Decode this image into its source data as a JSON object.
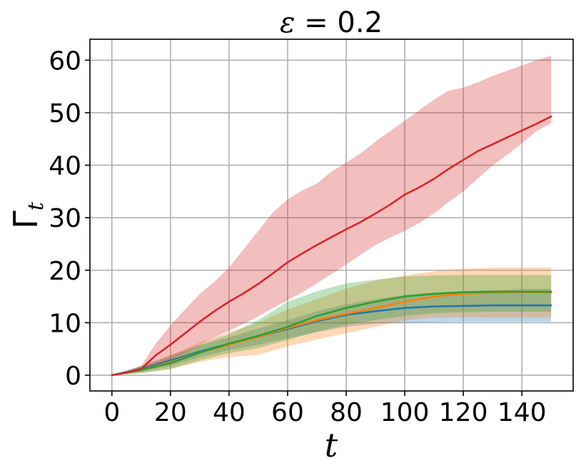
{
  "chart_data": {
    "type": "line",
    "title": {
      "symbol": "ε",
      "text": " = 0.2"
    },
    "xlabel": "t",
    "ylabel": {
      "main": "Γ",
      "sub": "t"
    },
    "xlim": [
      -7.5,
      157.5
    ],
    "ylim": [
      -3,
      64
    ],
    "xticks": [
      0,
      20,
      40,
      60,
      80,
      100,
      120,
      140
    ],
    "yticks": [
      0,
      10,
      20,
      30,
      40,
      50,
      60
    ],
    "grid": true,
    "legend": "none",
    "series": [
      {
        "color": "#1f77b4",
        "x": [
          0,
          10,
          20,
          30,
          40,
          50,
          60,
          70,
          80,
          90,
          100,
          110,
          120,
          130,
          140,
          150
        ],
        "values": [
          0,
          1.2,
          2.8,
          4.5,
          6.0,
          7.3,
          8.8,
          10.3,
          11.5,
          12.2,
          12.8,
          13.1,
          13.2,
          13.3,
          13.3,
          13.3
        ],
        "lower": [
          0,
          0.6,
          1.8,
          3.4,
          4.8,
          5.8,
          7.0,
          8.2,
          9.2,
          9.8,
          10.0,
          10.1,
          10.2,
          10.2,
          10.2,
          10.2
        ],
        "upper": [
          0,
          1.8,
          3.8,
          5.7,
          7.2,
          8.9,
          10.5,
          12.2,
          13.5,
          14.5,
          15.3,
          15.8,
          16.0,
          16.2,
          16.4,
          16.5
        ]
      },
      {
        "color": "#ff7f0e",
        "x": [
          0,
          10,
          20,
          30,
          40,
          50,
          60,
          70,
          80,
          90,
          100,
          110,
          120,
          130,
          140,
          150
        ],
        "values": [
          0,
          1.0,
          2.5,
          4.3,
          5.8,
          7.3,
          9.0,
          10.5,
          11.7,
          12.8,
          14.0,
          15.0,
          15.5,
          15.7,
          15.8,
          15.8
        ],
        "lower": [
          0,
          0.4,
          1.2,
          2.5,
          3.5,
          3.9,
          5.5,
          6.8,
          8.0,
          9.2,
          10.5,
          11.0,
          11.0,
          11.0,
          11.0,
          11.0
        ],
        "upper": [
          0,
          1.6,
          3.8,
          6.2,
          8.2,
          10.0,
          12.5,
          14.5,
          16.5,
          18.0,
          19.0,
          19.8,
          20.3,
          20.5,
          20.5,
          20.5
        ]
      },
      {
        "color": "#2ca02c",
        "x": [
          0,
          10,
          20,
          30,
          40,
          50,
          60,
          70,
          80,
          90,
          100,
          110,
          120,
          130,
          140,
          150
        ],
        "values": [
          0,
          1.0,
          2.3,
          4.3,
          6.0,
          7.5,
          9.2,
          11.3,
          12.8,
          14.0,
          15.0,
          15.5,
          15.8,
          15.9,
          15.9,
          15.9
        ],
        "lower": [
          0,
          0.4,
          1.2,
          2.8,
          4.2,
          5.2,
          6.7,
          8.3,
          9.6,
          10.5,
          11.3,
          11.8,
          12.0,
          12.1,
          12.1,
          12.1
        ],
        "upper": [
          0,
          1.6,
          3.3,
          5.8,
          7.8,
          10.5,
          14.0,
          16.0,
          17.5,
          18.2,
          18.8,
          19.0,
          19.1,
          19.1,
          19.1,
          19.1
        ]
      },
      {
        "color": "#d62728",
        "x": [
          0,
          5,
          10,
          15,
          20,
          25,
          30,
          35,
          40,
          45,
          50,
          55,
          60,
          65,
          70,
          75,
          80,
          85,
          90,
          95,
          100,
          105,
          110,
          115,
          120,
          125,
          130,
          135,
          140,
          145,
          150
        ],
        "values": [
          0,
          0.5,
          1.2,
          3.8,
          5.8,
          8.0,
          10.2,
          12.2,
          14.0,
          15.6,
          17.4,
          19.4,
          21.5,
          23.2,
          24.8,
          26.3,
          27.8,
          29.2,
          30.8,
          32.5,
          34.4,
          35.8,
          37.4,
          39.3,
          41.0,
          42.7,
          44.0,
          45.3,
          46.6,
          47.9,
          49.3
        ],
        "lower": [
          0,
          0.3,
          0.8,
          2.0,
          3.0,
          4.3,
          5.8,
          7.2,
          8.5,
          9.8,
          11.2,
          12.8,
          14.3,
          15.8,
          17.5,
          19.3,
          21.1,
          23.0,
          24.8,
          26.2,
          27.5,
          29.0,
          30.8,
          33.0,
          35.0,
          37.5,
          40.0,
          42.0,
          44.2,
          46.5,
          48.0
        ],
        "upper": [
          0,
          0.8,
          1.8,
          6.0,
          9.5,
          12.5,
          15.5,
          17.8,
          20.5,
          24.0,
          27.5,
          31.0,
          33.5,
          35.2,
          36.5,
          38.8,
          40.5,
          42.3,
          44.5,
          46.5,
          48.5,
          50.5,
          52.5,
          54.2,
          54.8,
          55.8,
          57.0,
          58.0,
          59.0,
          60.0,
          60.8
        ]
      }
    ]
  }
}
